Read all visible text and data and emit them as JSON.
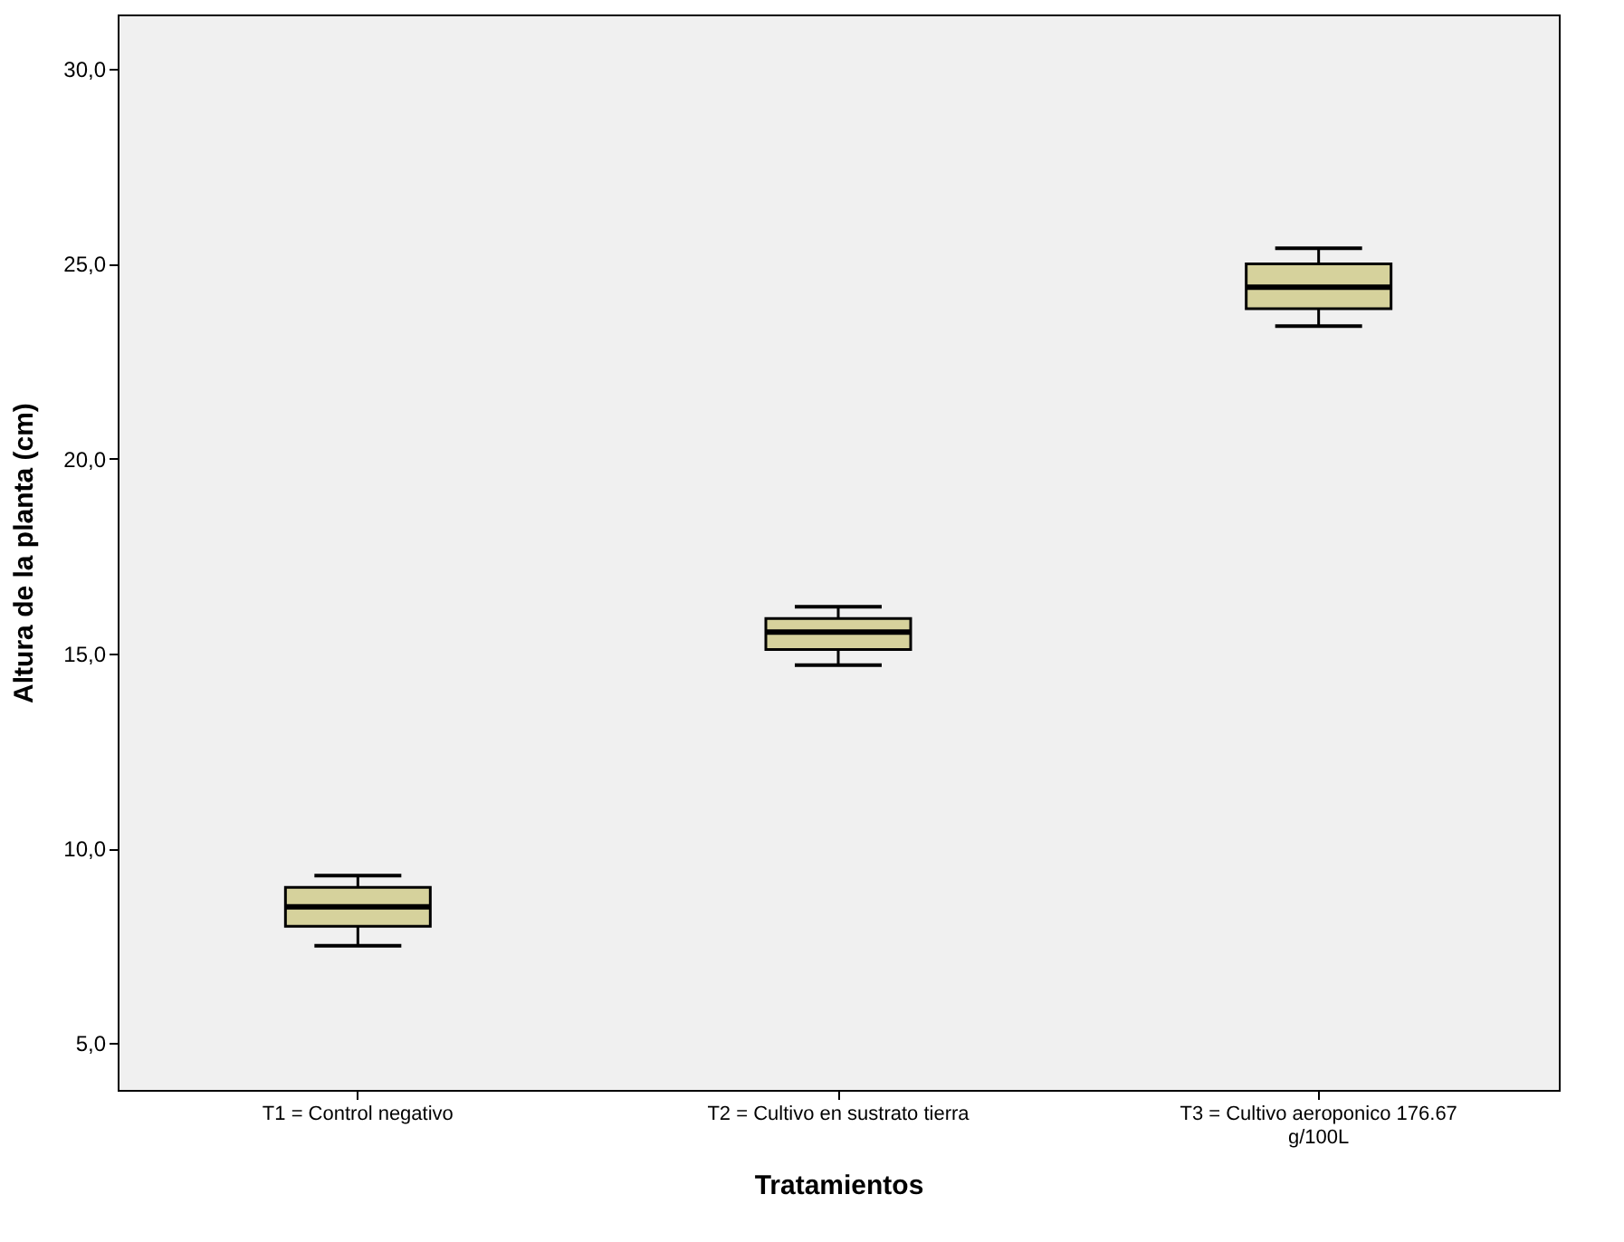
{
  "chart_data": {
    "type": "box",
    "xlabel": "Tratamientos",
    "ylabel": "Altura de la planta (cm)",
    "categories": [
      "T1 = Control negativo",
      "T2 = Cultivo en sustrato tierra",
      "T3 = Cultivo aeroponico 176.67 g/100L"
    ],
    "boxes": [
      {
        "low": 7.5,
        "q1": 8.0,
        "median": 8.5,
        "q3": 9.0,
        "high": 9.3
      },
      {
        "low": 14.7,
        "q1": 15.1,
        "median": 15.55,
        "q3": 15.9,
        "high": 16.2
      },
      {
        "low": 23.4,
        "q1": 23.85,
        "median": 24.4,
        "q3": 25.0,
        "high": 25.4
      }
    ],
    "color": "#d6d29c",
    "ylim": [
      3.8,
      31.4
    ],
    "yticks": [
      {
        "value": 5,
        "label": "5,0"
      },
      {
        "value": 10,
        "label": "10,0"
      },
      {
        "value": 15,
        "label": "15,0"
      },
      {
        "value": 20,
        "label": "20,0"
      },
      {
        "value": 25,
        "label": "25,0"
      },
      {
        "value": 30,
        "label": "30,0"
      }
    ],
    "grid": false
  }
}
